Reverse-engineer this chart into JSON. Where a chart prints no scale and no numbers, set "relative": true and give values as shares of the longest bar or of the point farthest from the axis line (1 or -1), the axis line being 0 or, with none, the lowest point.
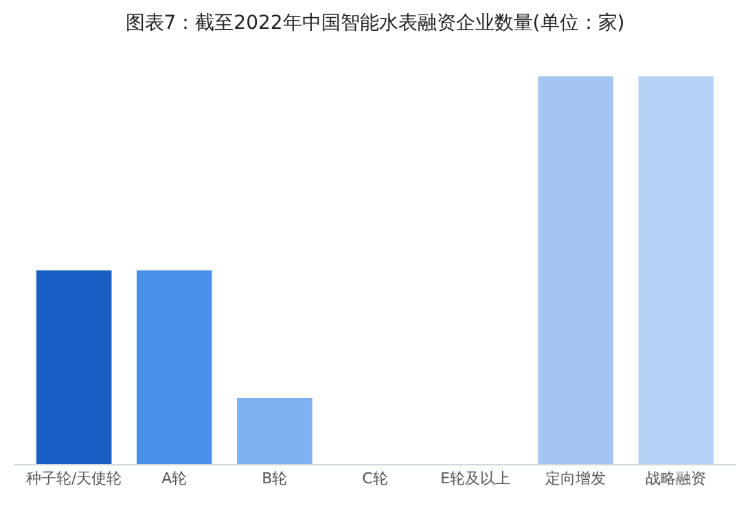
{
  "chart_data": {
    "type": "bar",
    "title": "图表7：截至2022年中国智能水表融资企业数量(单位：家)",
    "relative": true,
    "categories": [
      "种子轮/天使轮",
      "A轮",
      "B轮",
      "C轮",
      "E轮及以上",
      "定向增发",
      "战略融资"
    ],
    "values": [
      0.5,
      0.5,
      0.17,
      0,
      0,
      1,
      1
    ],
    "colors": [
      "#1a5fc4",
      "#4a90e8",
      "#7fb0f0",
      "#2a4f9a",
      "#3a7fe0",
      "#a4c4f0",
      "#b6d1f4"
    ]
  }
}
